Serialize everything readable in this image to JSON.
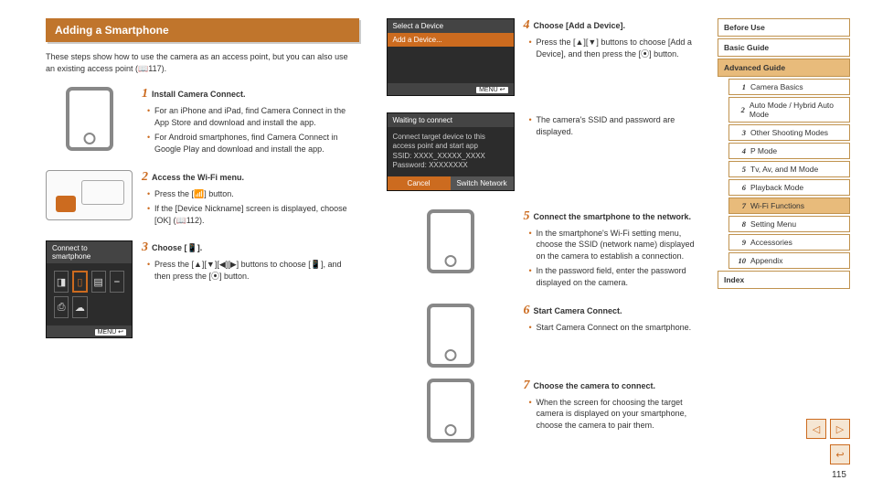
{
  "heading": "Adding a Smartphone",
  "intro": "These steps show how to use the camera as an access point, but you can also use an existing access point (📖117).",
  "steps": [
    {
      "num": "1",
      "title": "Install Camera Connect.",
      "bullets": [
        "For an iPhone and iPad, find Camera Connect in the App Store and download and install the app.",
        "For Android smartphones, find Camera Connect in Google Play and download and install the app."
      ]
    },
    {
      "num": "2",
      "title": "Access the Wi-Fi menu.",
      "bullets": [
        "Press the [📶] button.",
        "If the [Device Nickname] screen is displayed, choose [OK] (📖112)."
      ]
    },
    {
      "num": "3",
      "title": "Choose [📱].",
      "bullets": [
        "Press the [▲][▼][◀][▶] buttons to choose [📱], and then press the [⦿] button."
      ]
    },
    {
      "num": "4",
      "title": "Choose [Add a Device].",
      "bullets": [
        "Press the [▲][▼] buttons to choose [Add a Device], and then press the [⦿] button.",
        "The camera's SSID and password are displayed."
      ]
    },
    {
      "num": "5",
      "title": "Connect the smartphone to the network.",
      "bullets": [
        "In the smartphone's Wi-Fi setting menu, choose the SSID (network name) displayed on the camera to establish a connection.",
        "In the password field, enter the password displayed on the camera."
      ]
    },
    {
      "num": "6",
      "title": "Start Camera Connect.",
      "bullets": [
        "Start Camera Connect on the smartphone."
      ]
    },
    {
      "num": "7",
      "title": "Choose the camera to connect.",
      "bullets": [
        "When the screen for choosing the target camera is displayed on your smartphone, choose the camera to pair them."
      ]
    }
  ],
  "screens": {
    "connect": {
      "title": "Connect to smartphone",
      "foot": "MENU ↩"
    },
    "select": {
      "title": "Select a Device",
      "row": "Add a Device...",
      "foot": "MENU ↩"
    },
    "waiting": {
      "title": "Waiting to connect",
      "line1": "Connect target device to this",
      "line2": "access point and start app",
      "line3": "SSID: XXXX_XXXXX_XXXX",
      "line4": "Password: XXXXXXXX",
      "cancel": "Cancel",
      "switch": "Switch Network"
    }
  },
  "sidebar": {
    "top": [
      {
        "label": "Before Use",
        "hl": false
      },
      {
        "label": "Basic Guide",
        "hl": false
      },
      {
        "label": "Advanced Guide",
        "hl": true
      }
    ],
    "subs": [
      {
        "n": "1",
        "label": "Camera Basics",
        "hl": false
      },
      {
        "n": "2",
        "label": "Auto Mode / Hybrid Auto Mode",
        "hl": false
      },
      {
        "n": "3",
        "label": "Other Shooting Modes",
        "hl": false
      },
      {
        "n": "4",
        "label": "P Mode",
        "hl": false
      },
      {
        "n": "5",
        "label": "Tv, Av, and M Mode",
        "hl": false
      },
      {
        "n": "6",
        "label": "Playback Mode",
        "hl": false
      },
      {
        "n": "7",
        "label": "Wi-Fi Functions",
        "hl": true
      },
      {
        "n": "8",
        "label": "Setting Menu",
        "hl": false
      },
      {
        "n": "9",
        "label": "Accessories",
        "hl": false
      },
      {
        "n": "10",
        "label": "Appendix",
        "hl": false
      }
    ],
    "index": "Index"
  },
  "nav": {
    "prev": "◁",
    "next": "▷",
    "back": "↩"
  },
  "pagenum": "115"
}
